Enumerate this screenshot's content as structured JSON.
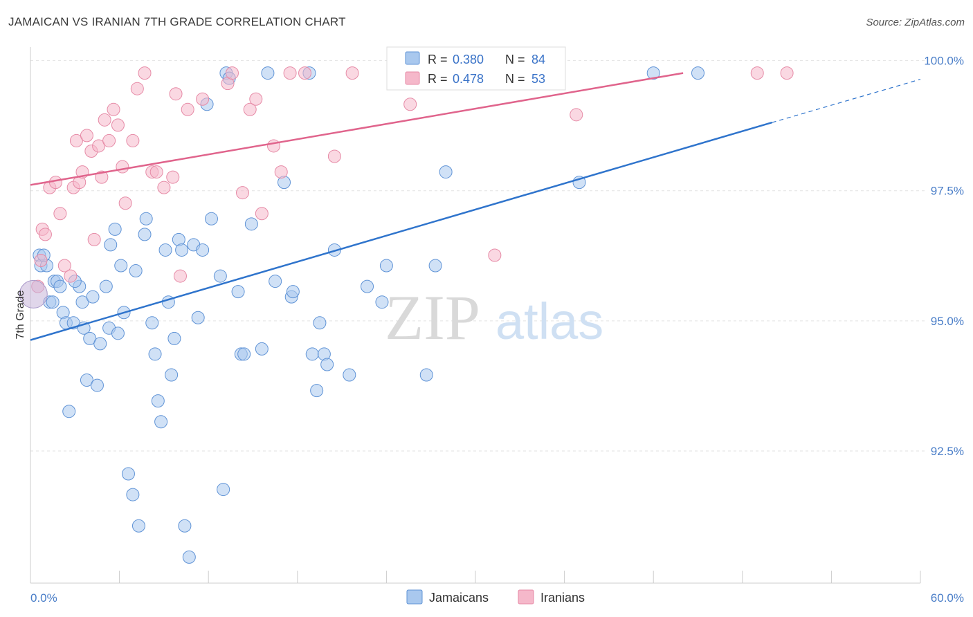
{
  "title": "JAMAICAN VS IRANIAN 7TH GRADE CORRELATION CHART",
  "source": "Source: ZipAtlas.com",
  "watermark": {
    "zip": "ZIP",
    "atlas": "atlas"
  },
  "chart_data": {
    "type": "scatter",
    "ylabel": "7th Grade",
    "xlim": [
      0,
      60
    ],
    "ylim": [
      90.2,
      100.5
    ],
    "x_tick_labels": {
      "min": "0.0%",
      "max": "60.0%"
    },
    "y_ticks": [
      {
        "value": 100.0,
        "label": "100.0%"
      },
      {
        "value": 97.5,
        "label": "97.5%"
      },
      {
        "value": 95.0,
        "label": "95.0%"
      },
      {
        "value": 92.5,
        "label": "92.5%"
      }
    ],
    "legend_stats": [
      {
        "r_label": "R =",
        "r_value": "0.380",
        "n_label": "N =",
        "n_value": "84",
        "color": "#a9c8ee"
      },
      {
        "r_label": "R =",
        "r_value": "0.478",
        "n_label": "N =",
        "n_value": "53",
        "color": "#f5b8ca"
      }
    ],
    "series": [
      {
        "name": "Jamaicans",
        "color": "#a9c8ee",
        "stroke": "#5f93d6",
        "trend_color": "#2f74cc",
        "trend": {
          "x0": 0,
          "y0": 94.87,
          "x1": 50,
          "y1": 99.05,
          "dash_to_x": 60,
          "dash_to_y": 99.88
        },
        "points": [
          [
            0.6,
            96.5
          ],
          [
            0.7,
            96.3
          ],
          [
            1.1,
            96.3
          ],
          [
            1.3,
            95.6
          ],
          [
            1.6,
            96.0
          ],
          [
            1.8,
            96.0
          ],
          [
            2.0,
            95.9
          ],
          [
            2.2,
            95.4
          ],
          [
            2.4,
            95.2
          ],
          [
            2.6,
            93.5
          ],
          [
            2.9,
            95.2
          ],
          [
            3.3,
            95.9
          ],
          [
            3.5,
            95.6
          ],
          [
            3.6,
            95.1
          ],
          [
            3.8,
            94.1
          ],
          [
            4.0,
            94.9
          ],
          [
            4.2,
            95.7
          ],
          [
            4.5,
            94.0
          ],
          [
            4.7,
            94.8
          ],
          [
            5.1,
            95.9
          ],
          [
            5.3,
            95.1
          ],
          [
            5.4,
            96.7
          ],
          [
            5.7,
            97.0
          ],
          [
            5.9,
            95.0
          ],
          [
            6.1,
            96.3
          ],
          [
            6.3,
            95.4
          ],
          [
            6.6,
            92.3
          ],
          [
            6.9,
            91.9
          ],
          [
            7.1,
            96.2
          ],
          [
            7.3,
            91.3
          ],
          [
            7.7,
            96.9
          ],
          [
            7.8,
            97.2
          ],
          [
            8.2,
            95.2
          ],
          [
            8.4,
            94.6
          ],
          [
            8.6,
            93.7
          ],
          [
            8.8,
            93.3
          ],
          [
            9.1,
            96.6
          ],
          [
            9.3,
            95.6
          ],
          [
            9.5,
            94.2
          ],
          [
            9.7,
            94.9
          ],
          [
            10.0,
            96.8
          ],
          [
            10.2,
            96.6
          ],
          [
            10.4,
            91.3
          ],
          [
            10.7,
            90.7
          ],
          [
            11.0,
            96.7
          ],
          [
            11.3,
            95.3
          ],
          [
            11.6,
            96.6
          ],
          [
            11.9,
            99.4
          ],
          [
            12.2,
            97.2
          ],
          [
            12.8,
            96.1
          ],
          [
            13.0,
            92.0
          ],
          [
            13.2,
            100.0
          ],
          [
            13.4,
            99.9
          ],
          [
            14.0,
            95.8
          ],
          [
            14.2,
            94.6
          ],
          [
            14.4,
            94.6
          ],
          [
            14.9,
            97.1
          ],
          [
            15.6,
            94.7
          ],
          [
            16.0,
            100.0
          ],
          [
            16.5,
            96.0
          ],
          [
            17.1,
            97.9
          ],
          [
            17.6,
            95.7
          ],
          [
            17.7,
            95.8
          ],
          [
            18.8,
            100.0
          ],
          [
            19.0,
            94.6
          ],
          [
            19.3,
            93.9
          ],
          [
            19.5,
            95.2
          ],
          [
            19.8,
            94.6
          ],
          [
            20.0,
            94.4
          ],
          [
            20.5,
            96.6
          ],
          [
            21.5,
            94.2
          ],
          [
            22.7,
            95.9
          ],
          [
            23.7,
            95.6
          ],
          [
            24.0,
            96.3
          ],
          [
            26.7,
            94.2
          ],
          [
            27.3,
            96.3
          ],
          [
            28.0,
            98.1
          ],
          [
            28.5,
            100.0
          ],
          [
            37.0,
            97.9
          ],
          [
            42.0,
            100.0
          ],
          [
            45.0,
            100.0
          ],
          [
            0.9,
            96.5
          ],
          [
            1.5,
            95.6
          ],
          [
            3.0,
            96.0
          ]
        ]
      },
      {
        "name": "Iranians",
        "color": "#f5b8ca",
        "stroke": "#e68aa6",
        "trend_color": "#e0648c",
        "trend": {
          "x0": 0,
          "y0": 97.85,
          "x1": 44,
          "y1": 100.0,
          "dash_to_x": 44,
          "dash_to_y": 100.0
        },
        "points": [
          [
            0.7,
            96.4
          ],
          [
            0.8,
            97.0
          ],
          [
            1.0,
            96.9
          ],
          [
            1.3,
            97.8
          ],
          [
            1.7,
            97.9
          ],
          [
            2.0,
            97.3
          ],
          [
            2.3,
            96.3
          ],
          [
            2.7,
            96.1
          ],
          [
            2.9,
            97.8
          ],
          [
            3.1,
            98.7
          ],
          [
            3.3,
            97.9
          ],
          [
            3.5,
            98.1
          ],
          [
            3.8,
            98.8
          ],
          [
            4.1,
            98.5
          ],
          [
            4.3,
            96.8
          ],
          [
            4.6,
            98.6
          ],
          [
            4.8,
            98.0
          ],
          [
            5.0,
            99.1
          ],
          [
            5.3,
            98.7
          ],
          [
            5.6,
            99.3
          ],
          [
            5.9,
            99.0
          ],
          [
            6.2,
            98.2
          ],
          [
            6.4,
            97.5
          ],
          [
            6.9,
            98.7
          ],
          [
            7.2,
            99.7
          ],
          [
            7.7,
            100.0
          ],
          [
            8.2,
            98.1
          ],
          [
            8.5,
            98.1
          ],
          [
            9.0,
            97.8
          ],
          [
            9.6,
            98.0
          ],
          [
            9.8,
            99.6
          ],
          [
            10.1,
            96.1
          ],
          [
            10.6,
            99.3
          ],
          [
            11.6,
            99.5
          ],
          [
            13.3,
            99.8
          ],
          [
            13.6,
            100.0
          ],
          [
            14.3,
            97.7
          ],
          [
            14.8,
            99.3
          ],
          [
            15.2,
            99.5
          ],
          [
            15.6,
            97.3
          ],
          [
            16.4,
            98.6
          ],
          [
            16.9,
            98.1
          ],
          [
            17.5,
            100.0
          ],
          [
            18.5,
            100.0
          ],
          [
            20.5,
            98.4
          ],
          [
            21.7,
            100.0
          ],
          [
            25.6,
            99.4
          ],
          [
            31.3,
            96.5
          ],
          [
            35.5,
            100.0
          ],
          [
            36.8,
            99.2
          ],
          [
            49.0,
            100.0
          ],
          [
            51.0,
            100.0
          ],
          [
            0.5,
            95.9
          ]
        ]
      }
    ],
    "bottom_legend": [
      {
        "label": "Jamaicans",
        "color": "#a9c8ee"
      },
      {
        "label": "Iranians",
        "color": "#f5b8ca"
      }
    ]
  }
}
